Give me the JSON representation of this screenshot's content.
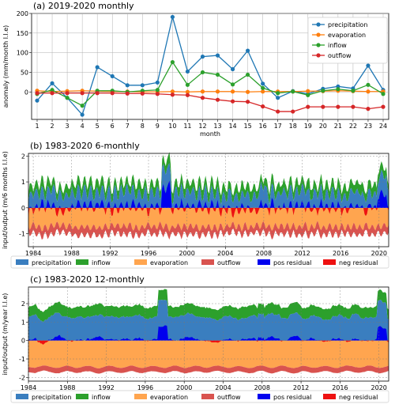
{
  "chart_data": [
    {
      "type": "line",
      "title": "(a) 2019-2020 monthly",
      "xlabel": "month",
      "ylabel": "anomaly (mm/month l.l.e)",
      "x": [
        1,
        2,
        3,
        4,
        5,
        6,
        7,
        8,
        9,
        10,
        11,
        12,
        13,
        14,
        15,
        16,
        17,
        18,
        19,
        20,
        21,
        22,
        23,
        24
      ],
      "ylim": [
        -70,
        200
      ],
      "yticks": [
        0,
        50,
        100,
        150,
        200
      ],
      "grid": true,
      "legend_position": "top-right",
      "series": [
        {
          "name": "precipitation",
          "color": "#1f77b4",
          "values": [
            -22,
            22,
            -15,
            -58,
            63,
            40,
            17,
            17,
            24,
            191,
            52,
            90,
            93,
            58,
            105,
            21,
            -15,
            2,
            -5,
            8,
            14,
            9,
            67,
            5
          ]
        },
        {
          "name": "evaporation",
          "color": "#ff7f0e",
          "values": [
            3,
            1,
            2,
            3,
            2,
            1,
            1,
            0,
            0,
            1,
            0,
            1,
            1,
            1,
            0,
            1,
            1,
            1,
            2,
            2,
            3,
            2,
            1,
            1
          ]
        },
        {
          "name": "inflow",
          "color": "#2ca02c",
          "values": [
            -5,
            5,
            -15,
            -35,
            3,
            3,
            0,
            3,
            5,
            76,
            18,
            50,
            44,
            19,
            44,
            10,
            -3,
            1,
            -8,
            3,
            7,
            3,
            18,
            -5
          ]
        },
        {
          "name": "outflow",
          "color": "#d62728",
          "values": [
            -3,
            -3,
            -3,
            -3,
            -3,
            -3,
            -4,
            -4,
            -5,
            -7,
            -8,
            -15,
            -20,
            -24,
            -25,
            -37,
            -50,
            -50,
            -38,
            -38,
            -38,
            -38,
            -43,
            -38
          ]
        }
      ]
    },
    {
      "type": "area",
      "title": "(b) 1983-2020 6-monthly",
      "ylabel": "input/output (m/6 months l.l.e)",
      "ylim": [
        -1.5,
        2.1
      ],
      "yticks": [
        -1,
        0,
        1,
        2
      ],
      "xlim": [
        1983.5,
        2021
      ],
      "xticks": [
        1984,
        1988,
        1992,
        1996,
        2000,
        2004,
        2008,
        2012,
        2016,
        2020
      ],
      "grid": true,
      "legend_position": "bottom",
      "series": [
        {
          "name": "precipitation",
          "color": "#3a7ebf"
        },
        {
          "name": "inflow",
          "color": "#2ca02c"
        },
        {
          "name": "evaporation",
          "color": "#ffa54f"
        },
        {
          "name": "outflow",
          "color": "#d9534f"
        },
        {
          "name": "pos residual",
          "color": "#0000ee"
        },
        {
          "name": "neg residual",
          "color": "#ee1111"
        }
      ]
    },
    {
      "type": "area",
      "title": "(c) 1983-2020 12-monthly",
      "ylabel": "input/output (m/year l.l.e)",
      "ylim": [
        -2.2,
        2.9
      ],
      "yticks": [
        -2,
        -1,
        0,
        1,
        2
      ],
      "xlim": [
        1984,
        2021
      ],
      "xticks": [
        1984,
        1988,
        1992,
        1996,
        2000,
        2004,
        2008,
        2012,
        2016,
        2020
      ],
      "grid": true,
      "legend_position": "bottom",
      "series": [
        {
          "name": "precipitation",
          "color": "#3a7ebf"
        },
        {
          "name": "inflow",
          "color": "#2ca02c"
        },
        {
          "name": "evaporation",
          "color": "#ffa54f"
        },
        {
          "name": "outflow",
          "color": "#d9534f"
        },
        {
          "name": "pos residual",
          "color": "#0000ee"
        },
        {
          "name": "neg residual",
          "color": "#ee1111"
        }
      ]
    }
  ]
}
